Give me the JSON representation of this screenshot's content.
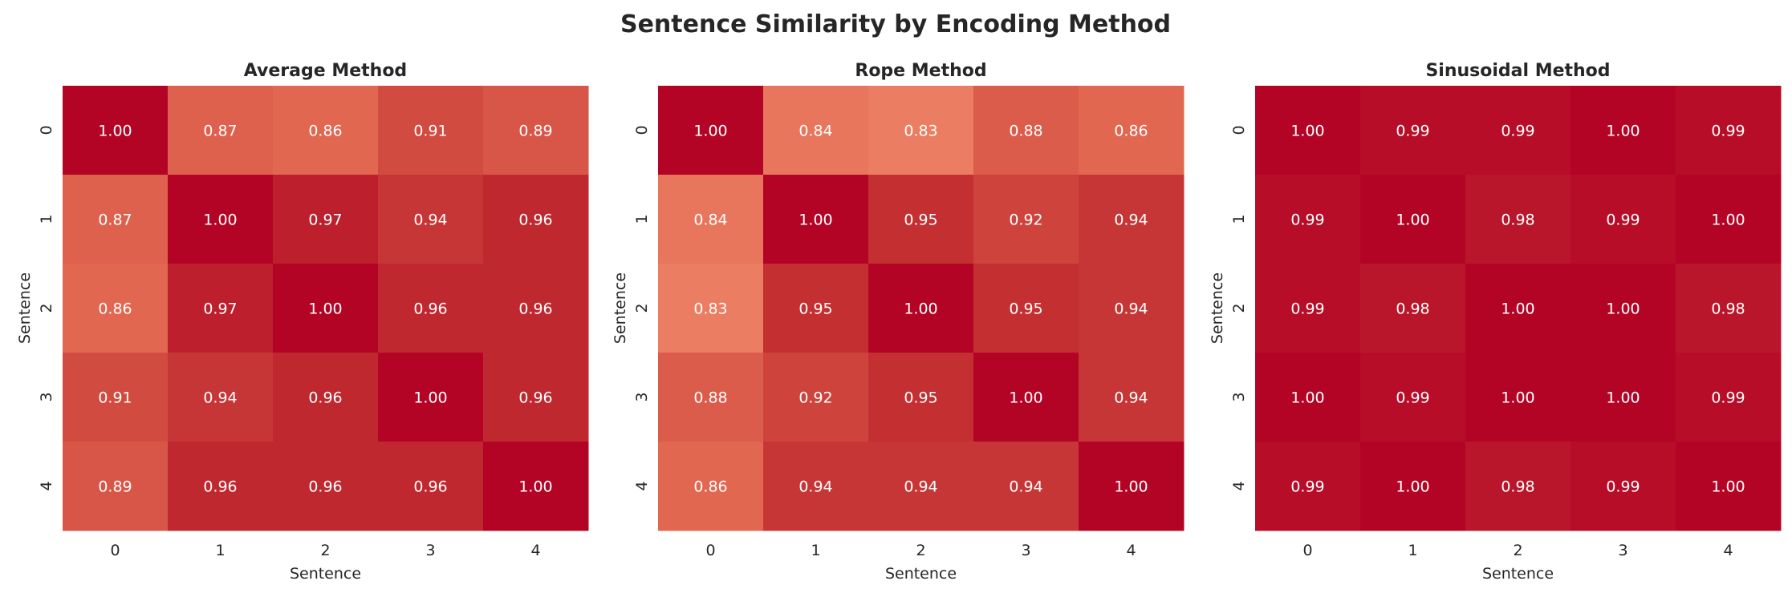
{
  "chart_data": {
    "type": "heatmap",
    "title": "Sentence Similarity by Encoding Method",
    "colormap": "coolwarm",
    "colorbar": false,
    "annotation_format": "0.00",
    "annotation_color": "#ffffff",
    "panels": [
      {
        "title": "Average Method",
        "xlabel": "Sentence",
        "ylabel": "Sentence",
        "x_ticks": [
          "0",
          "1",
          "2",
          "3",
          "4"
        ],
        "y_ticks": [
          "0",
          "1",
          "2",
          "3",
          "4"
        ],
        "values": [
          [
            1.0,
            0.87,
            0.86,
            0.91,
            0.89
          ],
          [
            0.87,
            1.0,
            0.97,
            0.94,
            0.96
          ],
          [
            0.86,
            0.97,
            1.0,
            0.96,
            0.96
          ],
          [
            0.91,
            0.94,
            0.96,
            1.0,
            0.96
          ],
          [
            0.89,
            0.96,
            0.96,
            0.96,
            1.0
          ]
        ]
      },
      {
        "title": "Rope Method",
        "xlabel": "Sentence",
        "ylabel": "Sentence",
        "x_ticks": [
          "0",
          "1",
          "2",
          "3",
          "4"
        ],
        "y_ticks": [
          "0",
          "1",
          "2",
          "3",
          "4"
        ],
        "values": [
          [
            1.0,
            0.84,
            0.83,
            0.88,
            0.86
          ],
          [
            0.84,
            1.0,
            0.95,
            0.92,
            0.94
          ],
          [
            0.83,
            0.95,
            1.0,
            0.95,
            0.94
          ],
          [
            0.88,
            0.92,
            0.95,
            1.0,
            0.94
          ],
          [
            0.86,
            0.94,
            0.94,
            0.94,
            1.0
          ]
        ]
      },
      {
        "title": "Sinusoidal Method",
        "xlabel": "Sentence",
        "ylabel": "Sentence",
        "x_ticks": [
          "0",
          "1",
          "2",
          "3",
          "4"
        ],
        "y_ticks": [
          "0",
          "1",
          "2",
          "3",
          "4"
        ],
        "values": [
          [
            1.0,
            0.99,
            0.99,
            1.0,
            0.99
          ],
          [
            0.99,
            1.0,
            0.98,
            0.99,
            1.0
          ],
          [
            0.99,
            0.98,
            1.0,
            1.0,
            0.98
          ],
          [
            1.0,
            0.99,
            1.0,
            1.0,
            0.99
          ],
          [
            0.99,
            1.0,
            0.98,
            0.99,
            1.0
          ]
        ]
      }
    ]
  }
}
